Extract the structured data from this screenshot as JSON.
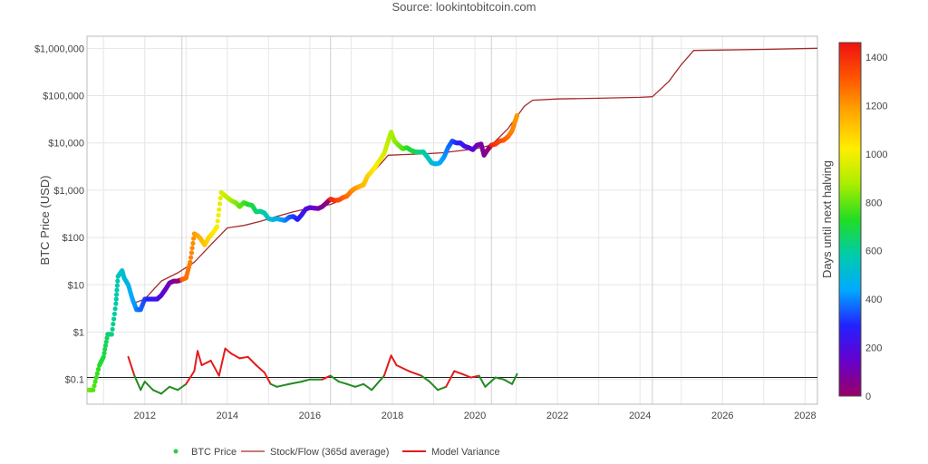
{
  "source_label": "Source: lookintobitcoin.com",
  "colors": {
    "stock_flow": "#a52a2a",
    "variance_above": "#e31a1c",
    "variance_below": "#228b22",
    "legend_price": "#2ecc40",
    "gridline": "#e6e6e6",
    "reference_line": "#222222"
  },
  "chart_data": {
    "type": "scatter",
    "y_scale": "log",
    "grid": true,
    "legend_placement": "bottom",
    "xlim": [
      2010.6,
      2028.3
    ],
    "ylim": [
      0.03,
      1800000
    ],
    "ylabel": "BTC Price (USD)",
    "x_ticks": [
      {
        "v": 2012,
        "label": "2012"
      },
      {
        "v": 2014,
        "label": "2014"
      },
      {
        "v": 2016,
        "label": "2016"
      },
      {
        "v": 2018,
        "label": "2018"
      },
      {
        "v": 2020,
        "label": "2020"
      },
      {
        "v": 2022,
        "label": "2022"
      },
      {
        "v": 2024,
        "label": "2024"
      },
      {
        "v": 2026,
        "label": "2026"
      },
      {
        "v": 2028,
        "label": "2028"
      }
    ],
    "y_ticks": [
      {
        "v": 0.1,
        "label": "$0.1"
      },
      {
        "v": 1,
        "label": "$1"
      },
      {
        "v": 10,
        "label": "$10"
      },
      {
        "v": 100,
        "label": "$100"
      },
      {
        "v": 1000,
        "label": "$1,000"
      },
      {
        "v": 10000,
        "label": "$10,000"
      },
      {
        "v": 100000,
        "label": "$100,000"
      },
      {
        "v": 1000000,
        "label": "$1,000,000"
      }
    ],
    "reference_line_y": 0.11,
    "halving_dates": [
      2012.9,
      2016.5,
      2020.4,
      2024.3,
      2028.3
    ],
    "colorbar": {
      "title": "Days until next halving",
      "min": 0,
      "max": 1460,
      "ticks": [
        0,
        200,
        400,
        600,
        800,
        1000,
        1200,
        1400
      ],
      "colorscale": [
        "#990066",
        "#6600cc",
        "#2222ff",
        "#00aaff",
        "#00ccaa",
        "#22dd22",
        "#aaee00",
        "#ffee00",
        "#ffaa00",
        "#ff5500",
        "#ee1111"
      ]
    },
    "series": [
      {
        "name": "BTC Price",
        "kind": "markers_colored",
        "x": [
          2010.6,
          2010.75,
          2010.9,
          2011.0,
          2011.1,
          2011.2,
          2011.3,
          2011.35,
          2011.45,
          2011.5,
          2011.6,
          2011.7,
          2011.8,
          2011.9,
          2012.0,
          2012.1,
          2012.2,
          2012.3,
          2012.4,
          2012.5,
          2012.6,
          2012.7,
          2012.8,
          2012.9,
          2013.0,
          2013.1,
          2013.2,
          2013.28,
          2013.35,
          2013.45,
          2013.55,
          2013.65,
          2013.75,
          2013.85,
          2013.92,
          2014.0,
          2014.1,
          2014.2,
          2014.3,
          2014.4,
          2014.5,
          2014.6,
          2014.7,
          2014.8,
          2014.9,
          2015.0,
          2015.1,
          2015.2,
          2015.3,
          2015.4,
          2015.5,
          2015.6,
          2015.7,
          2015.8,
          2015.9,
          2016.0,
          2016.1,
          2016.2,
          2016.3,
          2016.4,
          2016.5,
          2016.6,
          2016.7,
          2016.8,
          2016.9,
          2017.0,
          2017.1,
          2017.2,
          2017.3,
          2017.4,
          2017.5,
          2017.6,
          2017.7,
          2017.8,
          2017.9,
          2017.97,
          2018.05,
          2018.15,
          2018.25,
          2018.35,
          2018.45,
          2018.55,
          2018.65,
          2018.75,
          2018.85,
          2018.95,
          2019.05,
          2019.15,
          2019.25,
          2019.35,
          2019.45,
          2019.55,
          2019.65,
          2019.75,
          2019.85,
          2019.95,
          2020.05,
          2020.15,
          2020.22,
          2020.3,
          2020.4,
          2020.5,
          2020.6,
          2020.7,
          2020.8,
          2020.9,
          2020.97,
          2021.02
        ],
        "y": [
          0.06,
          0.06,
          0.2,
          0.3,
          0.9,
          0.9,
          4,
          15,
          20,
          14,
          10,
          5,
          3,
          3,
          5,
          5,
          5,
          5,
          6,
          8,
          11,
          12,
          12,
          13,
          14,
          30,
          120,
          110,
          95,
          70,
          100,
          125,
          170,
          900,
          800,
          700,
          600,
          550,
          450,
          550,
          500,
          480,
          350,
          360,
          330,
          250,
          240,
          250,
          240,
          230,
          270,
          280,
          240,
          300,
          400,
          430,
          420,
          410,
          450,
          540,
          650,
          610,
          620,
          700,
          750,
          950,
          1100,
          1200,
          1300,
          2000,
          2500,
          3300,
          4400,
          6000,
          11000,
          17000,
          11000,
          9000,
          7500,
          8000,
          7000,
          6500,
          6400,
          6500,
          5000,
          3800,
          3600,
          3800,
          5000,
          8000,
          11000,
          10000,
          10000,
          8500,
          8000,
          7200,
          9000,
          9500,
          5500,
          7000,
          9000,
          9500,
          11000,
          11500,
          13500,
          18000,
          28000,
          38000
        ]
      },
      {
        "name": "Stock/Flow (365d average)",
        "kind": "line",
        "x": [
          2011.7,
          2012.0,
          2012.4,
          2012.8,
          2013.2,
          2013.6,
          2014.0,
          2014.4,
          2014.8,
          2015.2,
          2015.6,
          2016.0,
          2016.5,
          2016.9,
          2017.3,
          2017.7,
          2017.9,
          2018.3,
          2018.8,
          2019.2,
          2019.6,
          2020.0,
          2020.4,
          2020.8,
          2021.2,
          2021.4,
          2022.0,
          2023.0,
          2024.0,
          2024.3,
          2024.7,
          2025.0,
          2025.3,
          2026.0,
          2027.0,
          2028.3
        ],
        "y": [
          4,
          5,
          12,
          18,
          30,
          70,
          160,
          180,
          220,
          280,
          350,
          420,
          500,
          700,
          1500,
          3500,
          5500,
          5700,
          5900,
          6200,
          6800,
          7500,
          9000,
          20000,
          60000,
          80000,
          85000,
          88000,
          92000,
          95000,
          200000,
          450000,
          900000,
          920000,
          950000,
          1000000
        ]
      },
      {
        "name": "Model Variance",
        "kind": "line_split",
        "x": [
          2011.6,
          2011.75,
          2011.9,
          2012.0,
          2012.2,
          2012.4,
          2012.6,
          2012.8,
          2013.0,
          2013.2,
          2013.28,
          2013.38,
          2013.6,
          2013.8,
          2013.95,
          2014.1,
          2014.3,
          2014.5,
          2014.7,
          2014.9,
          2015.05,
          2015.2,
          2015.5,
          2015.8,
          2016.0,
          2016.3,
          2016.5,
          2016.7,
          2016.9,
          2017.1,
          2017.3,
          2017.5,
          2017.8,
          2017.97,
          2018.1,
          2018.4,
          2018.7,
          2018.9,
          2019.1,
          2019.3,
          2019.5,
          2019.7,
          2019.9,
          2020.1,
          2020.25,
          2020.5,
          2020.7,
          2020.9,
          2021.02
        ],
        "y": [
          0.3,
          0.12,
          0.06,
          0.09,
          0.06,
          0.05,
          0.07,
          0.06,
          0.08,
          0.15,
          0.4,
          0.2,
          0.25,
          0.12,
          0.45,
          0.35,
          0.28,
          0.3,
          0.2,
          0.14,
          0.08,
          0.07,
          0.08,
          0.09,
          0.1,
          0.1,
          0.12,
          0.09,
          0.08,
          0.07,
          0.08,
          0.06,
          0.12,
          0.32,
          0.2,
          0.15,
          0.12,
          0.09,
          0.06,
          0.07,
          0.15,
          0.13,
          0.11,
          0.12,
          0.07,
          0.11,
          0.1,
          0.08,
          0.13
        ]
      }
    ]
  }
}
